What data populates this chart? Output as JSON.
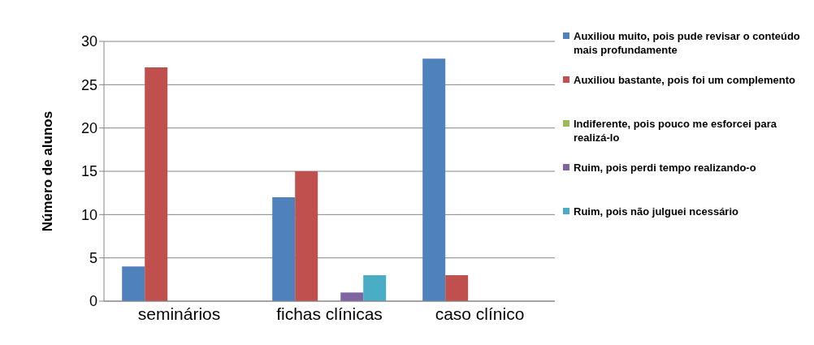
{
  "chart_data": {
    "type": "bar",
    "ylabel": "Número de alunos",
    "categories": [
      "seminários",
      "fichas clínicas",
      "caso clínico"
    ],
    "series": [
      {
        "name": "Auxiliou muito, pois pude revisar o conteúdo mais profundamente",
        "color": "#4f81bd",
        "values": [
          4,
          12,
          28
        ]
      },
      {
        "name": "Auxiliou bastante, pois foi um complemento",
        "color": "#c0504d",
        "values": [
          27,
          15,
          3
        ]
      },
      {
        "name": "Indiferente, pois pouco me esforcei para realizá-lo",
        "color": "#9bbb59",
        "values": [
          0,
          0,
          0
        ]
      },
      {
        "name": "Ruim, pois perdi tempo realizando-o",
        "color": "#8064a2",
        "values": [
          0,
          1,
          0
        ]
      },
      {
        "name": "Ruim, pois não julguei ncessário",
        "color": "#4bacc6",
        "values": [
          0,
          3,
          0
        ]
      }
    ],
    "ylim": [
      0,
      30
    ],
    "yticks": [
      0,
      5,
      10,
      15,
      20,
      25,
      30
    ],
    "grid": "y",
    "legend": "right"
  }
}
